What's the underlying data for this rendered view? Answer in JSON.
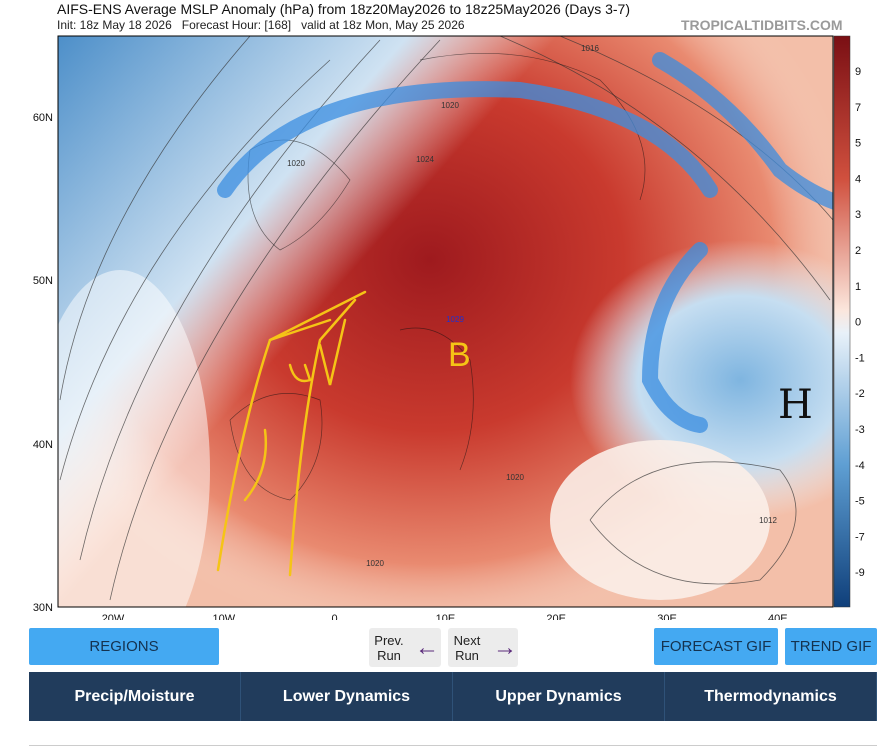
{
  "header": {
    "title": "AIFS-ENS Average MSLP Anomaly (hPa) from 18z20May2026 to 18z25May2026 (Days 3-7)",
    "subtitle": "Init: 18z May 18 2026   Forecast Hour: [168]   valid at 18z Mon, May 25 2026",
    "site": "TROPICALTIDBITS.COM"
  },
  "map": {
    "lat_labels": [
      "60N",
      "50N",
      "40N",
      "30N"
    ],
    "lon_labels": [
      "20W",
      "10W",
      "0",
      "10E",
      "20E",
      "30E",
      "40E"
    ],
    "isobar_labels": [
      "1016",
      "1020",
      "1024",
      "1020",
      "1029",
      "1020",
      "1020",
      "1012"
    ],
    "annotations": [
      "B",
      "H"
    ]
  },
  "colorbar": {
    "labels": [
      "9",
      "7",
      "5",
      "4",
      "3",
      "2",
      "1",
      "0",
      "-1",
      "-2",
      "-3",
      "-4",
      "-5",
      "-7",
      "-9"
    ]
  },
  "buttons": {
    "regions": "REGIONS",
    "prev": "Prev. Run",
    "next": "Next Run",
    "forecast_gif": "FORECAST GIF",
    "trend_gif": "TREND GIF"
  },
  "tabs": [
    "Precip/Moisture",
    "Lower Dynamics",
    "Upper Dynamics",
    "Thermodynamics"
  ]
}
